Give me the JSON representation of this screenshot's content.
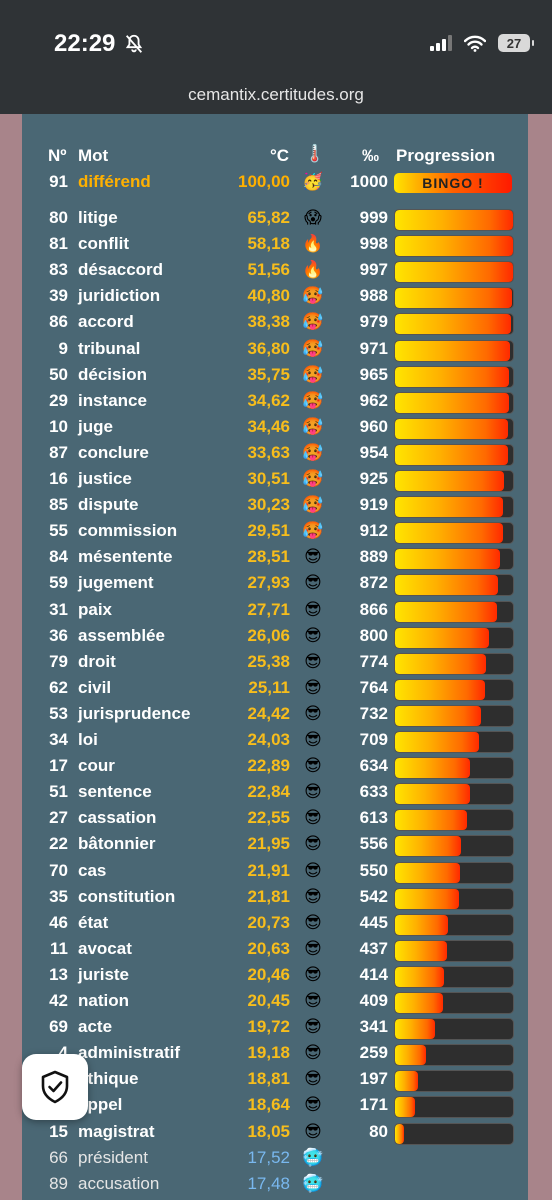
{
  "status": {
    "time": "22:29",
    "battery": "27"
  },
  "browser": {
    "url": "cemantix.certitudes.org"
  },
  "table": {
    "headers": {
      "no": "Nº",
      "word": "Mot",
      "temp": "°C",
      "thermo_icon": "🌡️",
      "permil": "‰",
      "progress": "Progression"
    },
    "found": {
      "no": "91",
      "word": "différend",
      "temp": "100,00",
      "emoji": "🥳",
      "permil": "1000",
      "bingo": "BINGO !"
    },
    "rows": [
      {
        "no": "80",
        "word": "litige",
        "temp": "65,82",
        "emoji": "😱",
        "permil": "999"
      },
      {
        "no": "81",
        "word": "conflit",
        "temp": "58,18",
        "emoji": "🔥",
        "permil": "998"
      },
      {
        "no": "83",
        "word": "désaccord",
        "temp": "51,56",
        "emoji": "🔥",
        "permil": "997"
      },
      {
        "no": "39",
        "word": "juridiction",
        "temp": "40,80",
        "emoji": "🥵",
        "permil": "988"
      },
      {
        "no": "86",
        "word": "accord",
        "temp": "38,38",
        "emoji": "🥵",
        "permil": "979"
      },
      {
        "no": "9",
        "word": "tribunal",
        "temp": "36,80",
        "emoji": "🥵",
        "permil": "971"
      },
      {
        "no": "50",
        "word": "décision",
        "temp": "35,75",
        "emoji": "🥵",
        "permil": "965"
      },
      {
        "no": "29",
        "word": "instance",
        "temp": "34,62",
        "emoji": "🥵",
        "permil": "962"
      },
      {
        "no": "10",
        "word": "juge",
        "temp": "34,46",
        "emoji": "🥵",
        "permil": "960"
      },
      {
        "no": "87",
        "word": "conclure",
        "temp": "33,63",
        "emoji": "🥵",
        "permil": "954"
      },
      {
        "no": "16",
        "word": "justice",
        "temp": "30,51",
        "emoji": "🥵",
        "permil": "925"
      },
      {
        "no": "85",
        "word": "dispute",
        "temp": "30,23",
        "emoji": "🥵",
        "permil": "919"
      },
      {
        "no": "55",
        "word": "commission",
        "temp": "29,51",
        "emoji": "🥵",
        "permil": "912"
      },
      {
        "no": "84",
        "word": "mésentente",
        "temp": "28,51",
        "emoji": "😎",
        "permil": "889"
      },
      {
        "no": "59",
        "word": "jugement",
        "temp": "27,93",
        "emoji": "😎",
        "permil": "872"
      },
      {
        "no": "31",
        "word": "paix",
        "temp": "27,71",
        "emoji": "😎",
        "permil": "866"
      },
      {
        "no": "36",
        "word": "assemblée",
        "temp": "26,06",
        "emoji": "😎",
        "permil": "800"
      },
      {
        "no": "79",
        "word": "droit",
        "temp": "25,38",
        "emoji": "😎",
        "permil": "774"
      },
      {
        "no": "62",
        "word": "civil",
        "temp": "25,11",
        "emoji": "😎",
        "permil": "764"
      },
      {
        "no": "53",
        "word": "jurisprudence",
        "temp": "24,42",
        "emoji": "😎",
        "permil": "732"
      },
      {
        "no": "34",
        "word": "loi",
        "temp": "24,03",
        "emoji": "😎",
        "permil": "709"
      },
      {
        "no": "17",
        "word": "cour",
        "temp": "22,89",
        "emoji": "😎",
        "permil": "634"
      },
      {
        "no": "51",
        "word": "sentence",
        "temp": "22,84",
        "emoji": "😎",
        "permil": "633"
      },
      {
        "no": "27",
        "word": "cassation",
        "temp": "22,55",
        "emoji": "😎",
        "permil": "613"
      },
      {
        "no": "22",
        "word": "bâtonnier",
        "temp": "21,95",
        "emoji": "😎",
        "permil": "556"
      },
      {
        "no": "70",
        "word": "cas",
        "temp": "21,91",
        "emoji": "😎",
        "permil": "550"
      },
      {
        "no": "35",
        "word": "constitution",
        "temp": "21,81",
        "emoji": "😎",
        "permil": "542"
      },
      {
        "no": "46",
        "word": "état",
        "temp": "20,73",
        "emoji": "😎",
        "permil": "445"
      },
      {
        "no": "11",
        "word": "avocat",
        "temp": "20,63",
        "emoji": "😎",
        "permil": "437"
      },
      {
        "no": "13",
        "word": "juriste",
        "temp": "20,46",
        "emoji": "😎",
        "permil": "414"
      },
      {
        "no": "42",
        "word": "nation",
        "temp": "20,45",
        "emoji": "😎",
        "permil": "409"
      },
      {
        "no": "69",
        "word": "acte",
        "temp": "19,72",
        "emoji": "😎",
        "permil": "341"
      },
      {
        "no": "4",
        "word": "administratif",
        "temp": "19,18",
        "emoji": "😎",
        "permil": "259"
      },
      {
        "no": "",
        "word": "éthique",
        "temp": "18,81",
        "emoji": "😎",
        "permil": "197"
      },
      {
        "no": "",
        "word": "appel",
        "temp": "18,64",
        "emoji": "😎",
        "permil": "171"
      },
      {
        "no": "15",
        "word": "magistrat",
        "temp": "18,05",
        "emoji": "😎",
        "permil": "80"
      },
      {
        "no": "66",
        "word": "président",
        "temp": "17,52",
        "emoji": "🥶",
        "permil": "",
        "cold": true
      },
      {
        "no": "89",
        "word": "accusation",
        "temp": "17,48",
        "emoji": "🥶",
        "permil": "",
        "cold": true
      }
    ]
  },
  "colors": {
    "panel": "#4a6774",
    "page_bg": "#a8848a",
    "temp_warm": "#f7bd1c",
    "temp_cold": "#79b8ef",
    "found_word": "#ffb000"
  },
  "icons": {
    "shield": "shield-check-icon",
    "mute": "bell-slash-icon",
    "wifi": "wifi-icon",
    "signal": "cellular-signal-icon"
  }
}
